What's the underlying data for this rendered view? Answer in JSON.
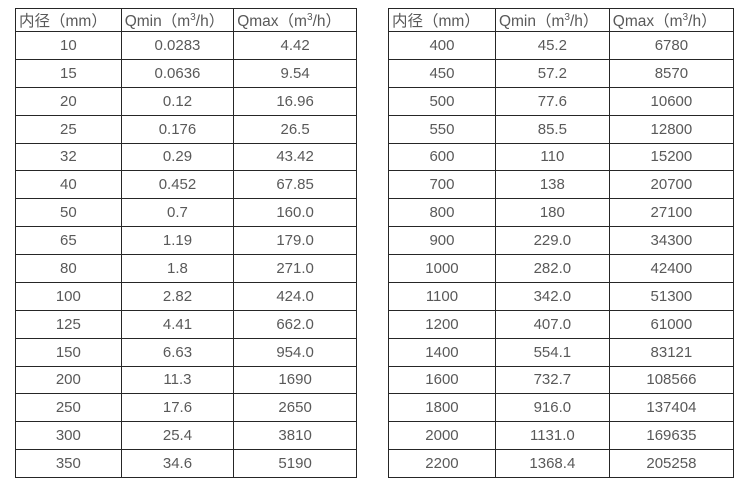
{
  "page": {
    "background": "#ffffff",
    "border_color": "#262626",
    "text_color": "#595959"
  },
  "chart_data": [
    {
      "type": "table",
      "title": "",
      "headers": [
        "内径（mm）",
        "Qmin（m³/h）",
        "Qmax（m³/h）"
      ],
      "rows": [
        [
          "10",
          "0.0283",
          "4.42"
        ],
        [
          "15",
          "0.0636",
          "9.54"
        ],
        [
          "20",
          "0.12",
          "16.96"
        ],
        [
          "25",
          "0.176",
          "26.5"
        ],
        [
          "32",
          "0.29",
          "43.42"
        ],
        [
          "40",
          "0.452",
          "67.85"
        ],
        [
          "50",
          "0.7",
          "160.0"
        ],
        [
          "65",
          "1.19",
          "179.0"
        ],
        [
          "80",
          "1.8",
          "271.0"
        ],
        [
          "100",
          "2.82",
          "424.0"
        ],
        [
          "125",
          "4.41",
          "662.0"
        ],
        [
          "150",
          "6.63",
          "954.0"
        ],
        [
          "200",
          "11.3",
          "1690"
        ],
        [
          "250",
          "17.6",
          "2650"
        ],
        [
          "300",
          "25.4",
          "3810"
        ],
        [
          "350",
          "34.6",
          "5190"
        ]
      ]
    },
    {
      "type": "table",
      "title": "",
      "headers": [
        "内径（mm）",
        "Qmin（m³/h）",
        "Qmax（m³/h）"
      ],
      "rows": [
        [
          "400",
          "45.2",
          "6780"
        ],
        [
          "450",
          "57.2",
          "8570"
        ],
        [
          "500",
          "77.6",
          "10600"
        ],
        [
          "550",
          "85.5",
          "12800"
        ],
        [
          "600",
          "110",
          "15200"
        ],
        [
          "700",
          "138",
          "20700"
        ],
        [
          "800",
          "180",
          "27100"
        ],
        [
          "900",
          "229.0",
          "34300"
        ],
        [
          "1000",
          "282.0",
          "42400"
        ],
        [
          "1100",
          "342.0",
          "51300"
        ],
        [
          "1200",
          "407.0",
          "61000"
        ],
        [
          "1400",
          "554.1",
          "83121"
        ],
        [
          "1600",
          "732.7",
          "108566"
        ],
        [
          "1800",
          "916.0",
          "137404"
        ],
        [
          "2000",
          "1131.0",
          "169635"
        ],
        [
          "2200",
          "1368.4",
          "205258"
        ]
      ]
    }
  ]
}
